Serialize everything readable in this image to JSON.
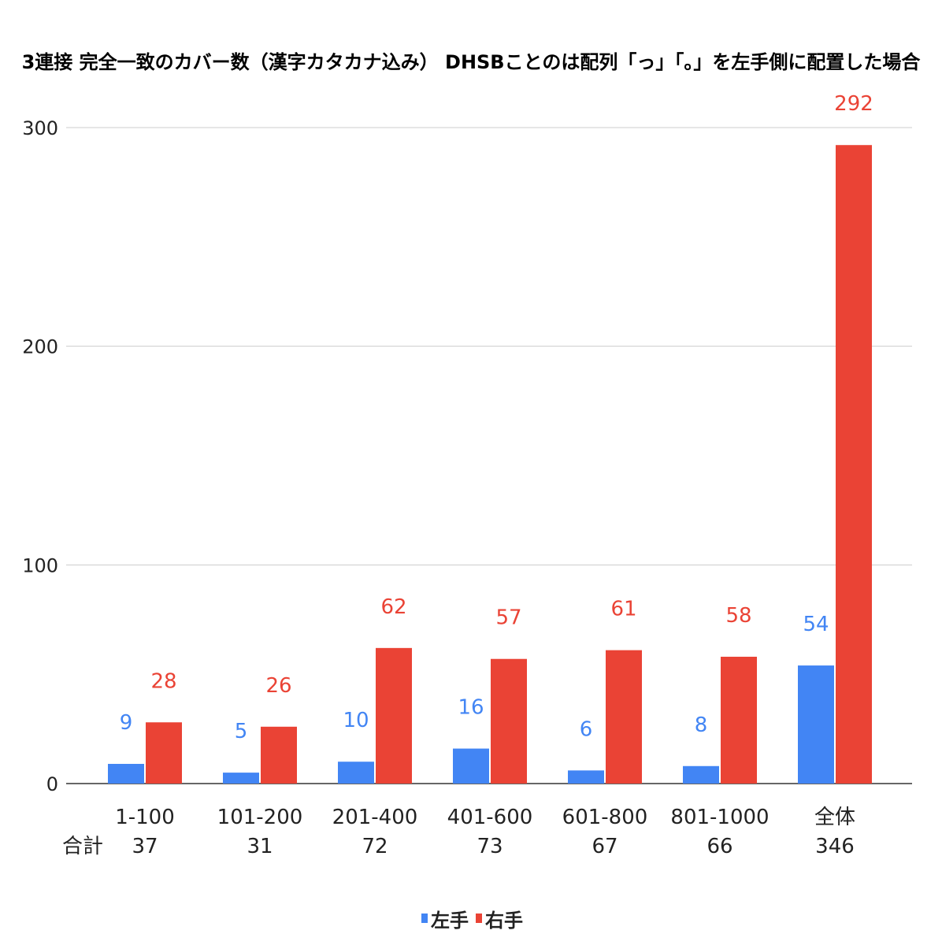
{
  "chart_data": {
    "type": "bar",
    "title": "3連接 完全一致のカバー数（漢字カタカナ込み） DHSBことのは配列「っ」「。」を左手側に配置した場合",
    "categories": [
      "1-100",
      "101-200",
      "201-400",
      "401-600",
      "601-800",
      "801-1000",
      "全体"
    ],
    "totals_label": "合計",
    "totals": [
      "37",
      "31",
      "72",
      "73",
      "67",
      "66",
      "346"
    ],
    "series": [
      {
        "name": "左手",
        "color": "#4285f4",
        "values": [
          9,
          5,
          10,
          16,
          6,
          8,
          54
        ]
      },
      {
        "name": "右手",
        "color": "#ea4335",
        "values": [
          28,
          26,
          62,
          57,
          61,
          58,
          292
        ]
      }
    ],
    "ylim": [
      0,
      300
    ],
    "yticks": [
      0,
      100,
      200,
      300
    ],
    "grid": true,
    "legend_position": "bottom",
    "data_labels": true
  }
}
